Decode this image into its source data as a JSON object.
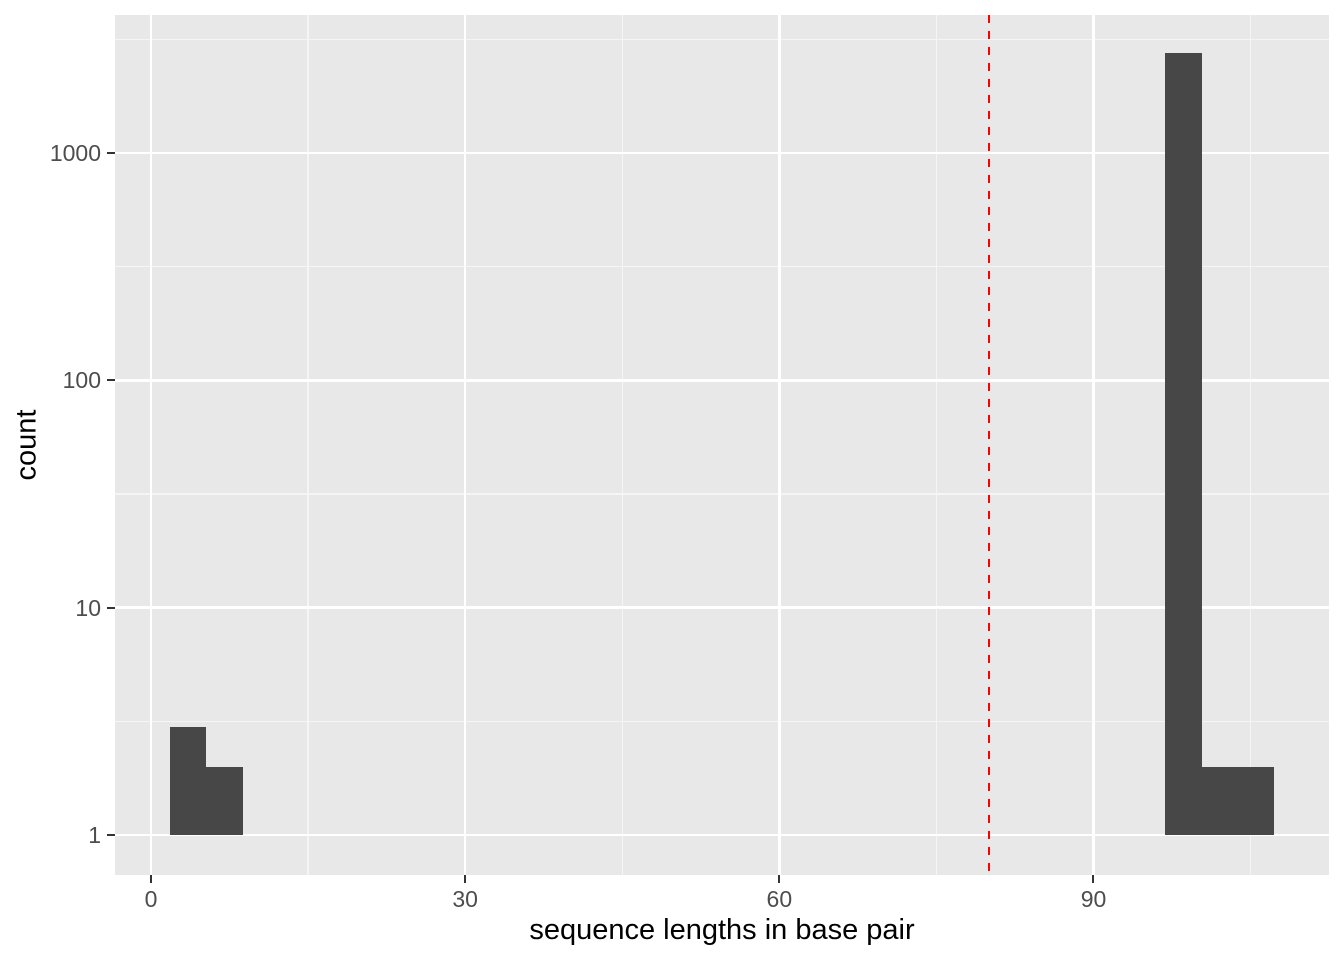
{
  "chart_data": {
    "type": "bar",
    "subtype": "histogram",
    "title": "",
    "xlabel": "sequence lengths in base pair",
    "ylabel": "count",
    "x_scale": "linear",
    "y_scale": "log10",
    "x_domain": [
      -3.44,
      112.49
    ],
    "y_domain_log10": [
      -0.176,
      3.607
    ],
    "x_major_ticks": [
      0,
      30,
      60,
      90
    ],
    "x_minor_ticks": [
      15,
      45,
      75,
      105
    ],
    "y_major_ticks": [
      1,
      10,
      100,
      1000
    ],
    "y_tick_labels": [
      "1",
      "10",
      "100",
      "1000"
    ],
    "y_minor_ticks": [
      3.162,
      31.62,
      316.2,
      3162
    ],
    "binwidth": 3.44,
    "bins": [
      {
        "x0": 1.82,
        "x1": 5.25,
        "count": 3
      },
      {
        "x0": 5.25,
        "x1": 8.79,
        "count": 2
      },
      {
        "x0": 96.83,
        "x1": 100.36,
        "count": 2750
      },
      {
        "x0": 100.36,
        "x1": 103.8,
        "count": 2
      },
      {
        "x0": 103.8,
        "x1": 107.24,
        "count": 2
      }
    ],
    "vline": {
      "x": 80,
      "linetype": "dashed",
      "color": "#FF0000"
    },
    "legend": "none",
    "grid": true,
    "colors": {
      "panel_bg": "#E8E8E8",
      "grid_major": "#FFFFFF",
      "grid_minor": "#F5F5F5",
      "bar_fill": "#474747",
      "vline": "#FF0000",
      "tick_mark": "#333333",
      "tick_label": "#4D4D4D",
      "axis_title": "#000000",
      "outer_bg": "#FFFFFF"
    }
  }
}
